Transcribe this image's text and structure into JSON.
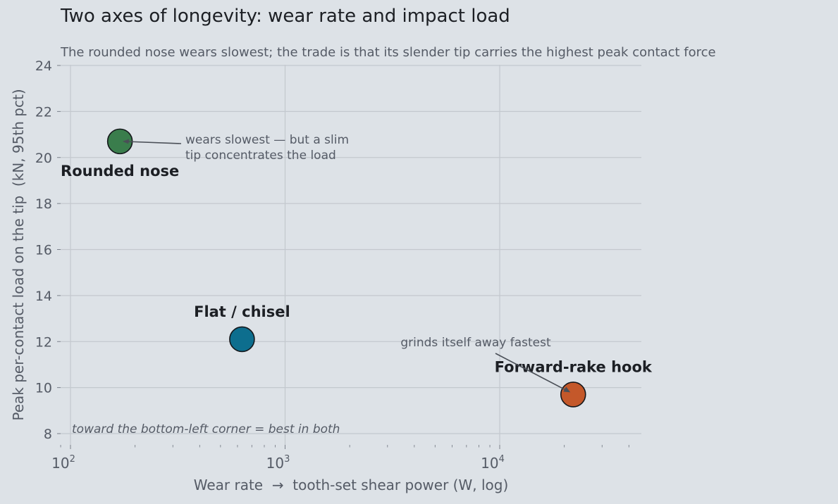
{
  "chart_data": {
    "type": "scatter",
    "title": "Two axes of longevity: wear rate and impact load",
    "subtitle": "The rounded nose wears slowest; the trade is that its slender tip carries the highest peak contact force",
    "xlabel": "Wear rate  →  tooth-set shear power (W, log)",
    "ylabel": "Peak per-contact load on the tip  (kN, 95th pct)",
    "x_scale": "log",
    "xlim": [
      90,
      45000
    ],
    "ylim": [
      7.5,
      24
    ],
    "grid": true,
    "x_ticks": [
      {
        "value": 100,
        "base": "10",
        "exp": "2"
      },
      {
        "value": 1000,
        "base": "10",
        "exp": "3"
      },
      {
        "value": 10000,
        "base": "10",
        "exp": "4"
      }
    ],
    "y_ticks": [
      8,
      10,
      12,
      14,
      16,
      18,
      20,
      22,
      24
    ],
    "points": [
      {
        "label": "Rounded nose",
        "x": 170,
        "y": 20.7,
        "color": "#3a7d4c"
      },
      {
        "label": "Flat / chisel",
        "x": 630,
        "y": 12.1,
        "color": "#0d6e8e"
      },
      {
        "label": "Forward-rake hook",
        "x": 22000,
        "y": 9.7,
        "color": "#c4582a"
      }
    ],
    "annotations": [
      {
        "line1": "wears slowest — but a slim",
        "line2": "tip concentrates the load",
        "target": "Rounded nose"
      },
      {
        "line1": "grinds itself away fastest",
        "line2": "",
        "target": "Forward-rake hook"
      }
    ],
    "corner_note": "toward the bottom-left corner = best in both"
  },
  "colors": {
    "background": "#dde2e7",
    "grid": "#c3c8ce",
    "text_dark": "#1c1f24",
    "text_muted": "#555b66"
  }
}
